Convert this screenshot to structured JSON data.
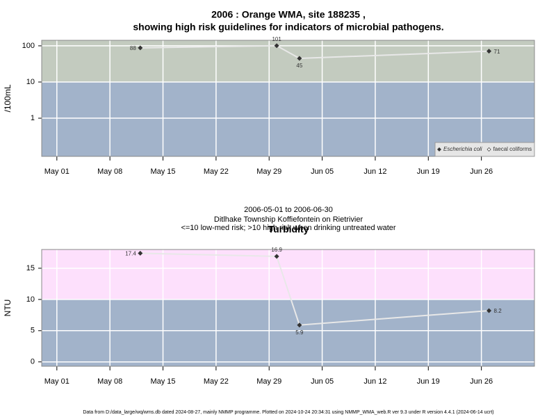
{
  "chart_data": [
    {
      "type": "line",
      "title": [
        "2006 : Orange WMA, site 188235 ,",
        "showing high risk guidelines for indicators of microbial pathogens."
      ],
      "ylabel": "/100mL",
      "log_scale": true,
      "grid": true,
      "x": [
        "May 12",
        "May 30",
        "Jun 02",
        "Jun 27"
      ],
      "xlim": [
        "Apr 29",
        "Jul 03"
      ],
      "xticks": [
        "May 01",
        "May 08",
        "May 15",
        "May 22",
        "May 29",
        "Jun 05",
        "Jun 12",
        "Jun 19",
        "Jun 26"
      ],
      "ylim": [
        0.088,
        142
      ],
      "yticks": [
        1,
        10,
        100
      ],
      "threshold": 10,
      "high_color": "#c3cbbf",
      "low_color": "#a2b3ca",
      "legend": "bottom right",
      "series": [
        {
          "name": "Escherichia coli",
          "color": "#333333",
          "values": [
            88,
            101,
            45,
            71
          ]
        },
        {
          "name": "faecal coliforms",
          "color": "#333333",
          "values": [
            null,
            null,
            null,
            null
          ]
        }
      ]
    },
    {
      "type": "line",
      "title": [
        "Turbidity"
      ],
      "ylabel": "NTU",
      "log_scale": false,
      "grid": true,
      "x": [
        "May 12",
        "May 30",
        "Jun 02",
        "Jun 27"
      ],
      "xlim": [
        "Apr 29",
        "Jul 03"
      ],
      "xticks": [
        "May 01",
        "May 08",
        "May 15",
        "May 22",
        "May 29",
        "Jun 05",
        "Jun 12",
        "Jun 19",
        "Jun 26"
      ],
      "ylim": [
        -0.7,
        18
      ],
      "yticks": [
        0,
        5,
        10,
        15
      ],
      "threshold": 10,
      "high_color": "#fde0fc",
      "low_color": "#a2b3ca",
      "series": [
        {
          "name": "Turbidity",
          "color": "#333333",
          "values": [
            17.4,
            16.9,
            5.9,
            8.2
          ]
        }
      ]
    }
  ],
  "caption": [
    "2006-05-01 to 2006-06-30",
    "Ditlhake Township Koffiefontein on Rietrivier",
    "<=10 low-med risk; >10 high risk when drinking untreated water"
  ],
  "footer": "Data from D:/data_large/wq/wms.db dated 2024-08-27, mainly NMMP programme. Plotted on 2024-10-24 20:34:31 using NMMP_WMA_web.R ver 9.3 under R version 4.4.1 (2024-06-14 ucrt)"
}
